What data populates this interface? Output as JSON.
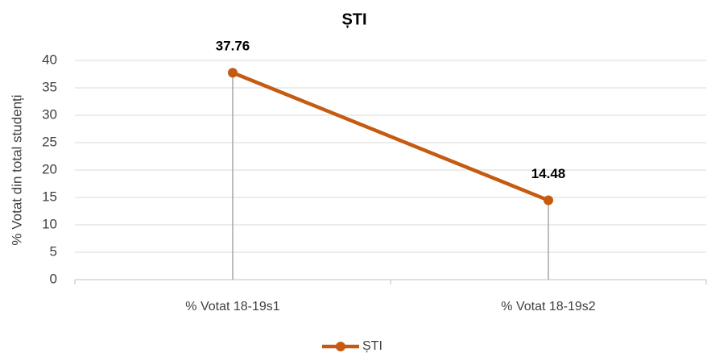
{
  "chart_data": {
    "type": "line",
    "title": "ȘTI",
    "y_label": "% Votat din total studenți",
    "categories": [
      "% Votat 18-19s1",
      "% Votat 18-19s2"
    ],
    "series": [
      {
        "name": "ȘTI",
        "color": "#c55a11",
        "values": [
          37.76,
          14.48
        ]
      }
    ],
    "ylim": [
      0,
      40
    ],
    "yticks": [
      0,
      5,
      10,
      15,
      20,
      25,
      30,
      35,
      40
    ],
    "grid": true,
    "drop_lines": true,
    "data_labels": true,
    "legend": "bottom"
  }
}
